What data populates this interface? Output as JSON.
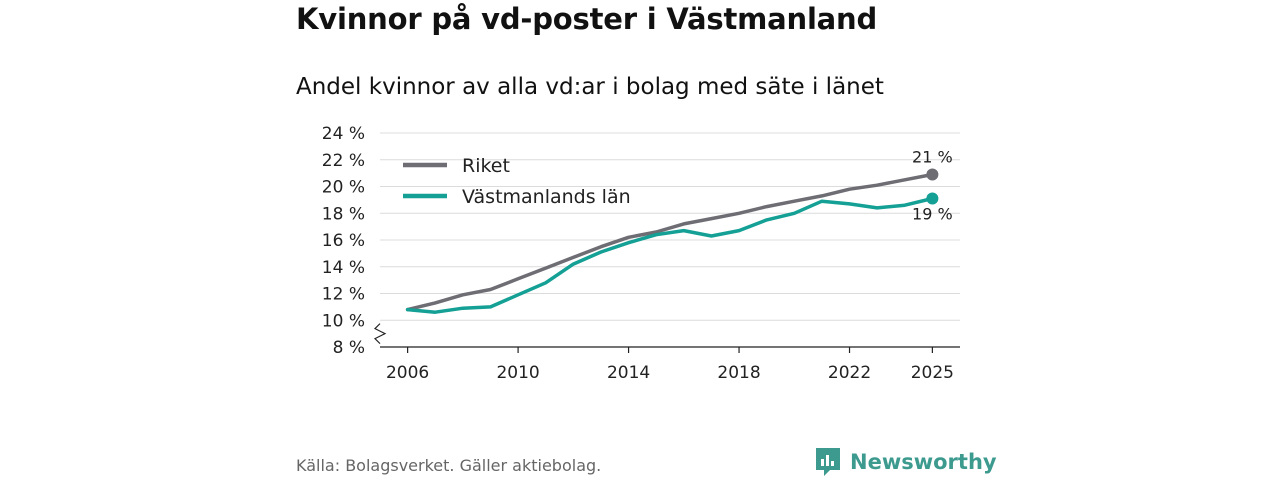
{
  "header": {
    "title": "Kvinnor på vd-poster i Västmanland",
    "subtitle": "Andel kvinnor av alla vd:ar i bolag med säte i länet"
  },
  "footer": {
    "source": "Källa: Bolagsverket. Gäller aktiebolag.",
    "brand": "Newsworthy"
  },
  "chart_data": {
    "type": "line",
    "title": "Kvinnor på vd-poster i Västmanland",
    "subtitle": "Andel kvinnor av alla vd:ar i bolag med säte i länet",
    "xlabel": "",
    "ylabel": "",
    "xlim": [
      2005,
      2026
    ],
    "ylim": [
      8,
      24
    ],
    "y_ticks": [
      8,
      10,
      12,
      14,
      16,
      18,
      20,
      22,
      24
    ],
    "y_tick_labels": [
      "8 %",
      "10 %",
      "12 %",
      "14 %",
      "16 %",
      "18 %",
      "20 %",
      "22 %",
      "24 %"
    ],
    "x_ticks": [
      2006,
      2010,
      2014,
      2018,
      2022,
      2025
    ],
    "x_tick_labels": [
      "2006",
      "2010",
      "2014",
      "2018",
      "2022",
      "2025"
    ],
    "grid": true,
    "legend_position": "top-left",
    "axis_break": true,
    "x": [
      2006,
      2007,
      2008,
      2009,
      2010,
      2011,
      2012,
      2013,
      2014,
      2015,
      2016,
      2017,
      2018,
      2019,
      2020,
      2021,
      2022,
      2023,
      2024,
      2025
    ],
    "series": [
      {
        "name": "Riket",
        "color": "#6e6d74",
        "values": [
          10.8,
          11.3,
          11.9,
          12.3,
          13.1,
          13.9,
          14.7,
          15.5,
          16.2,
          16.6,
          17.2,
          17.6,
          18.0,
          18.5,
          18.9,
          19.3,
          19.8,
          20.1,
          20.5,
          20.9
        ],
        "end_label": "21 %"
      },
      {
        "name": "Västmanlands län",
        "color": "#14a095",
        "values": [
          10.8,
          10.6,
          10.9,
          11.0,
          11.9,
          12.8,
          14.2,
          15.1,
          15.8,
          16.4,
          16.7,
          16.3,
          16.7,
          17.5,
          18.0,
          18.9,
          18.7,
          18.4,
          18.6,
          19.1
        ],
        "end_label": "19 %"
      }
    ]
  }
}
